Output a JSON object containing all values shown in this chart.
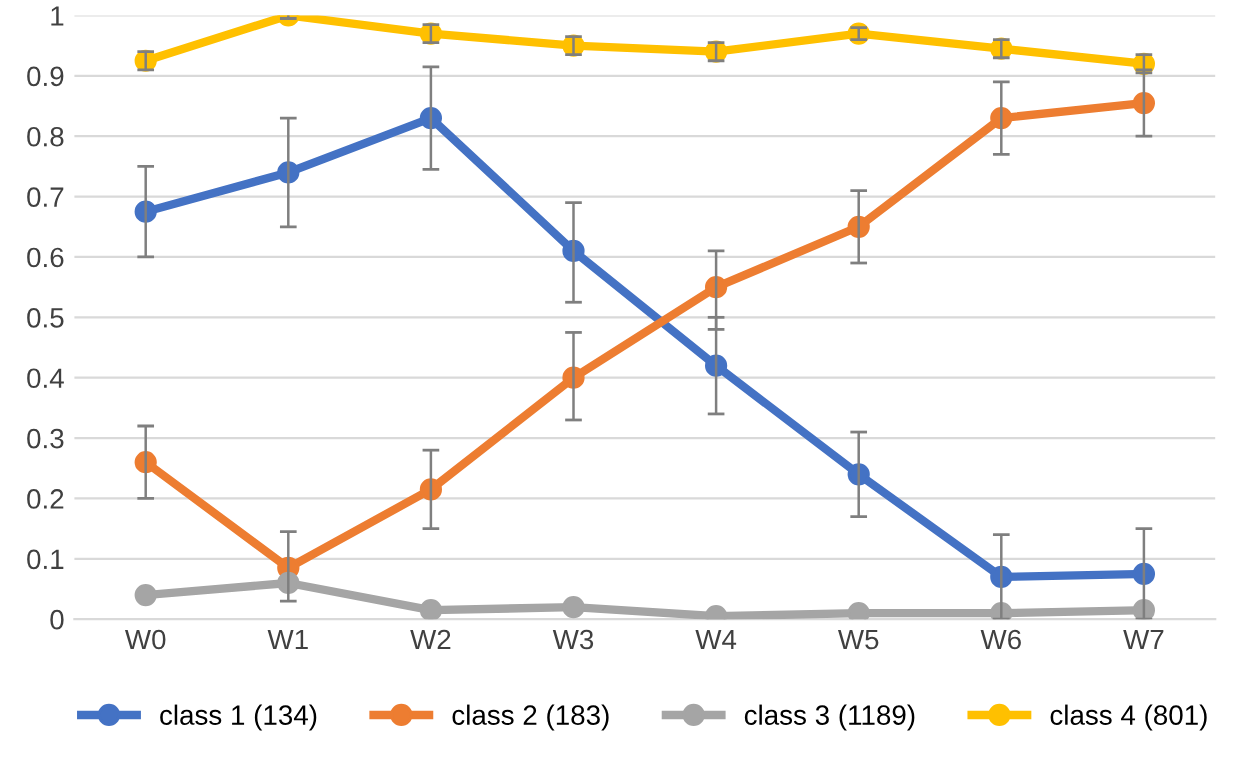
{
  "chart_data": {
    "type": "line",
    "categories": [
      "W0",
      "W1",
      "W2",
      "W3",
      "W4",
      "W5",
      "W6",
      "W7"
    ],
    "series": [
      {
        "name": "class 1 (134)",
        "color": "#4472c4",
        "values": [
          0.675,
          0.74,
          0.83,
          0.61,
          0.42,
          0.24,
          0.07,
          0.075
        ],
        "errors": [
          [
            0.6,
            0.75
          ],
          [
            0.65,
            0.83
          ],
          [
            0.745,
            0.915
          ],
          [
            0.525,
            0.69
          ],
          [
            0.34,
            0.5
          ],
          [
            0.17,
            0.31
          ],
          [
            0.0,
            0.14
          ],
          [
            0.0,
            0.15
          ]
        ]
      },
      {
        "name": "class 2 (183)",
        "color": "#ed7d31",
        "values": [
          0.26,
          0.085,
          0.215,
          0.4,
          0.55,
          0.65,
          0.83,
          0.855
        ],
        "errors": [
          [
            0.2,
            0.32
          ],
          [
            0.03,
            0.145
          ],
          [
            0.15,
            0.28
          ],
          [
            0.33,
            0.475
          ],
          [
            0.48,
            0.61
          ],
          [
            0.59,
            0.71
          ],
          [
            0.77,
            0.89
          ],
          [
            0.8,
            0.91
          ]
        ]
      },
      {
        "name": "class 3 (1189)",
        "color": "#a5a5a5",
        "values": [
          0.04,
          0.06,
          0.015,
          0.02,
          0.005,
          0.01,
          0.01,
          0.015
        ]
      },
      {
        "name": "class 4 (801)",
        "color": "#ffc000",
        "values": [
          0.925,
          1.0,
          0.97,
          0.95,
          0.94,
          0.97,
          0.945,
          0.92
        ],
        "errors": [
          0.015,
          0.005,
          0.015,
          0.015,
          0.015,
          0.01,
          0.015,
          0.015
        ]
      }
    ],
    "ylim": [
      0,
      1
    ],
    "yticks": [
      0,
      0.1,
      0.2,
      0.3,
      0.4,
      0.5,
      0.6,
      0.7,
      0.8,
      0.9,
      1
    ],
    "grid": "y",
    "legend": "bottom",
    "marker": "circle",
    "line_style": "solid"
  }
}
